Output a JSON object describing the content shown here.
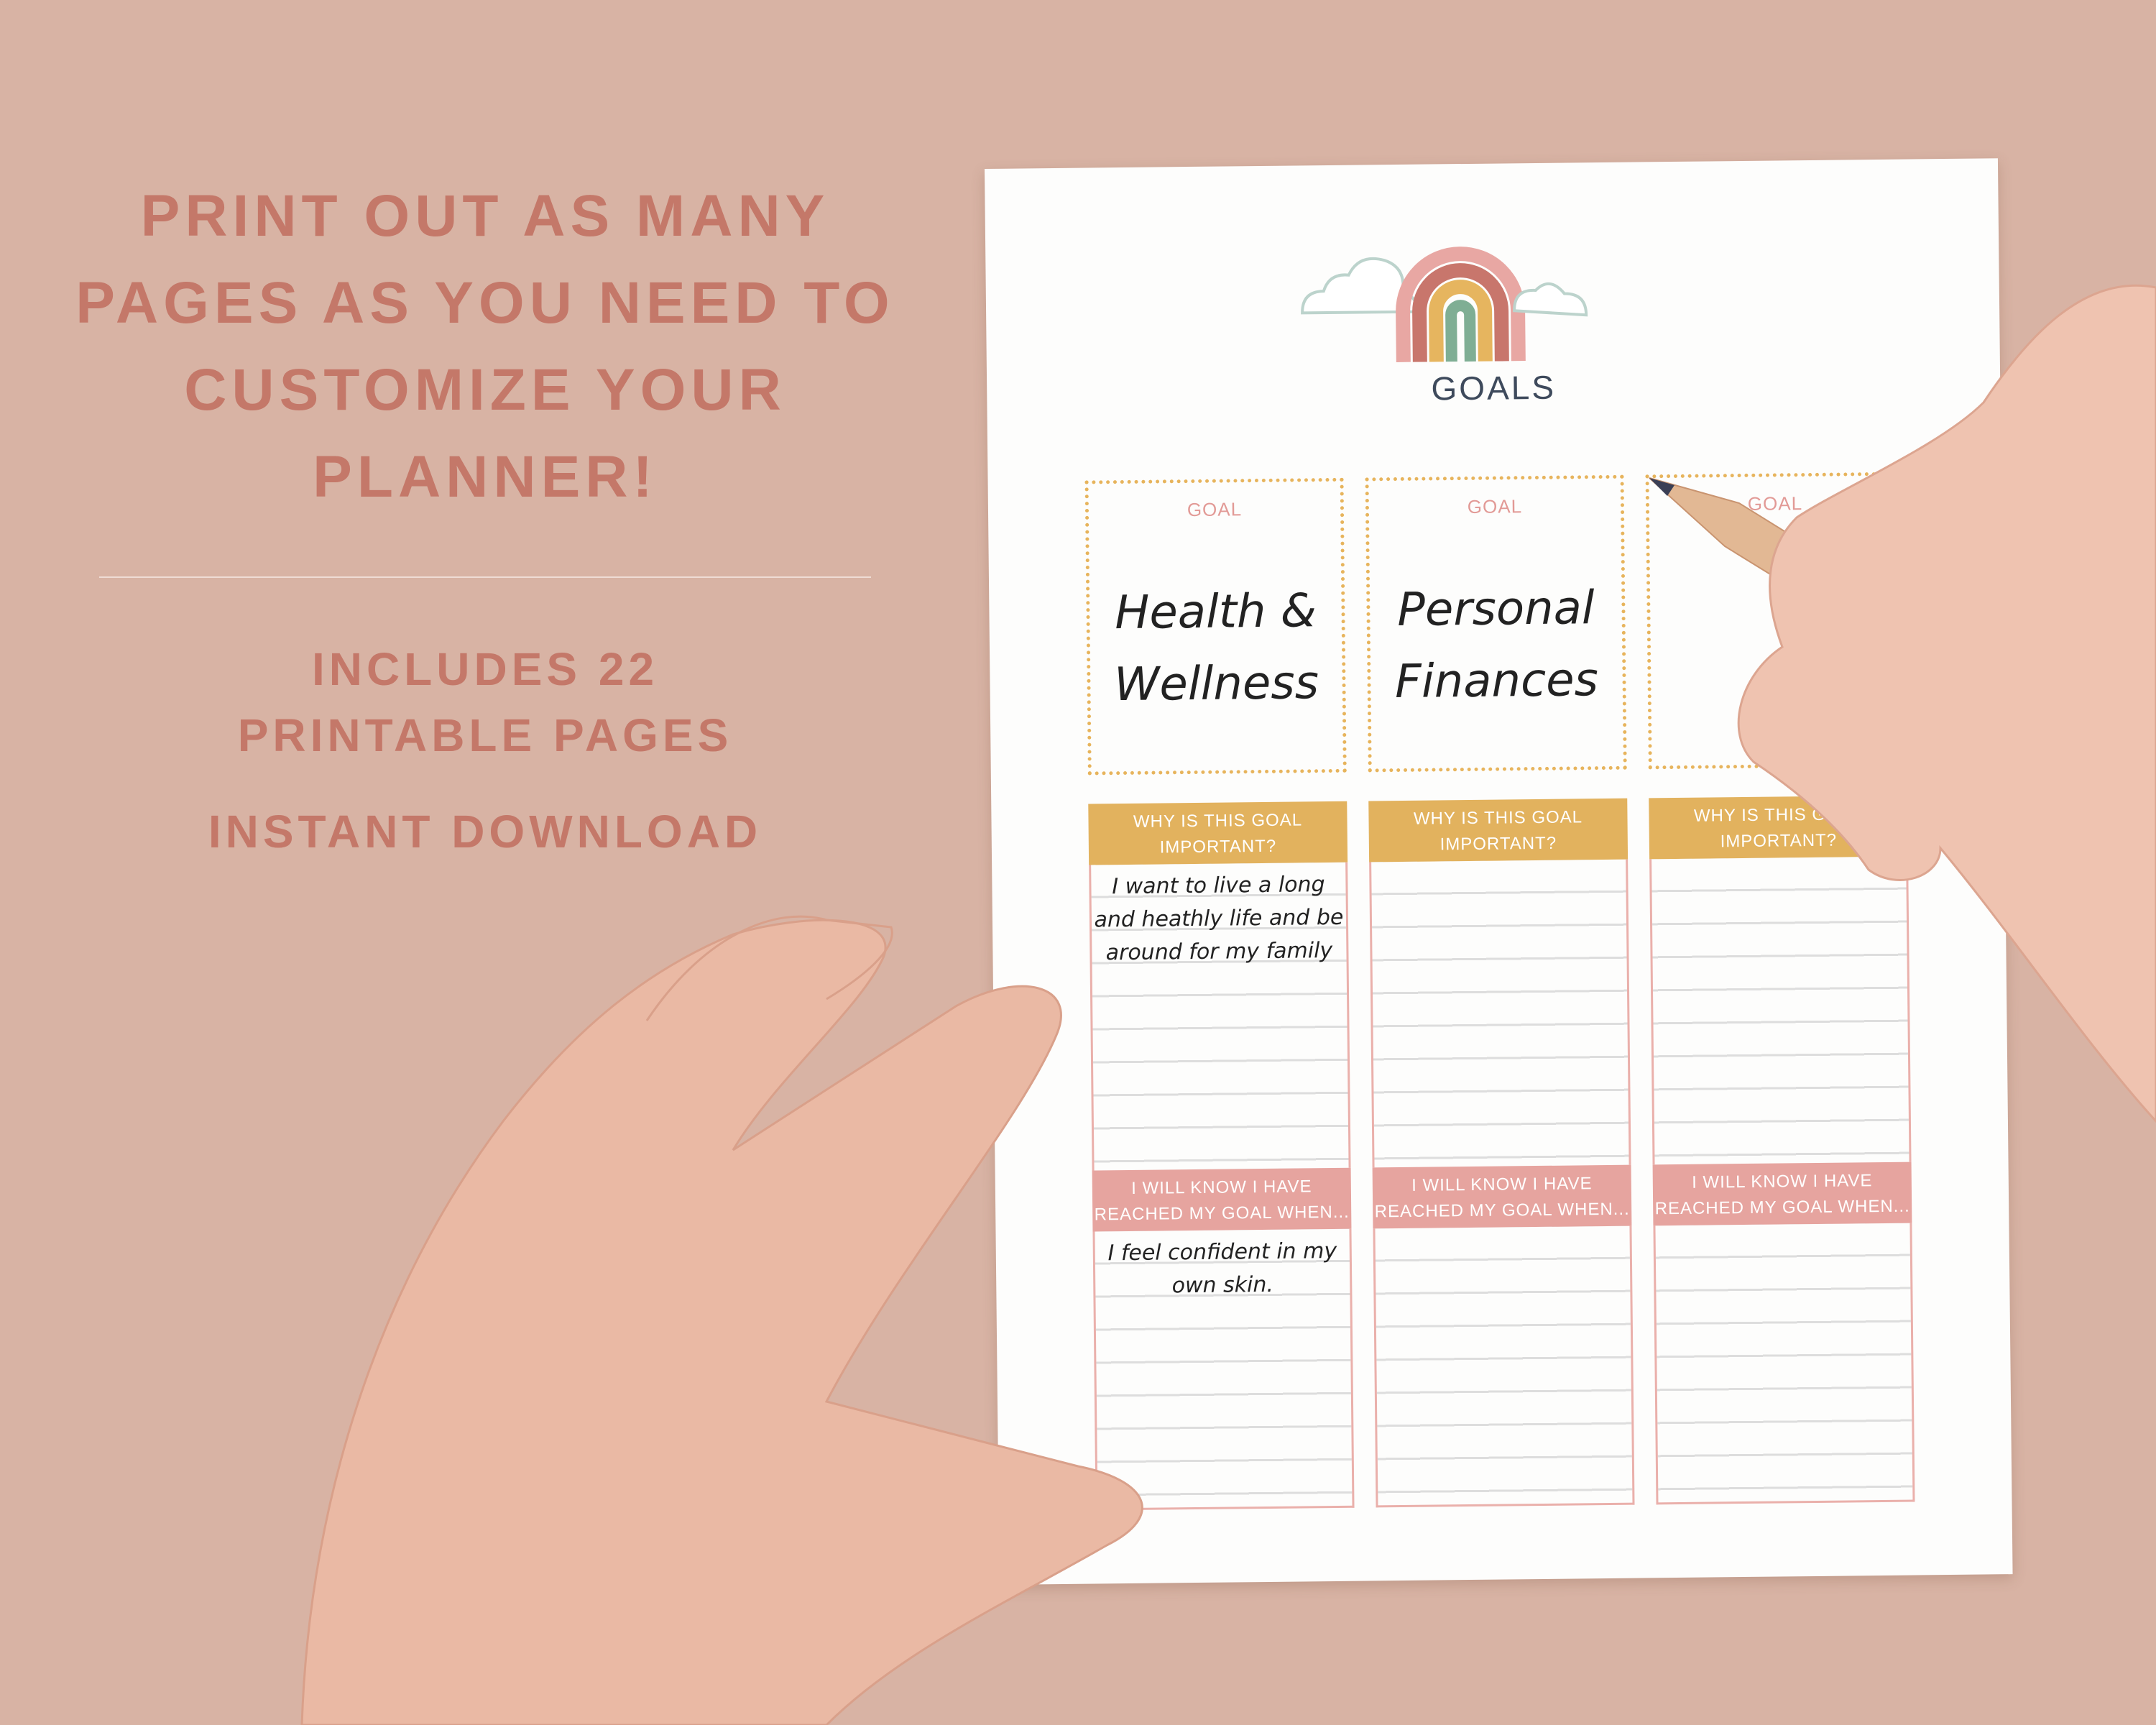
{
  "promo": {
    "headline": [
      "PRINT OUT AS MANY",
      "PAGES AS YOU NEED TO",
      "CUSTOMIZE YOUR",
      "PLANNER!"
    ],
    "includes": [
      "INCLUDES 22",
      "PRINTABLE PAGES"
    ],
    "download": "INSTANT DOWNLOAD",
    "text_color": "#c47869",
    "background_color": "#d8b3a4"
  },
  "planner": {
    "title": "GOALS",
    "icon": "rainbow-with-clouds",
    "columns": [
      {
        "goal_label": "GOAL",
        "goal": "Health & Wellness",
        "why_label": "WHY IS THIS GOAL IMPORTANT?",
        "why_text": "I want to live a long and heathly life and be around for my family",
        "know_label": "I WILL KNOW I HAVE REACHED MY GOAL WHEN...",
        "know_text": "I feel confident in my own skin."
      },
      {
        "goal_label": "GOAL",
        "goal": "Personal Finances",
        "why_label": "WHY IS THIS GOAL IMPORTANT?",
        "why_text": "",
        "know_label": "I WILL KNOW I HAVE REACHED MY GOAL WHEN...",
        "know_text": ""
      },
      {
        "goal_label": "GOAL",
        "goal": "",
        "why_label": "WHY IS THIS GOAL IMPORTANT?",
        "why_text": "",
        "know_label": "I WILL KNOW I HAVE REACHED MY GOAL WHEN...",
        "know_text": ""
      }
    ],
    "colors": {
      "goal_border": "#e7b45c",
      "why_header": "#e2b25e",
      "know_header": "#e6a49f",
      "title": "#3e4a5c"
    }
  }
}
